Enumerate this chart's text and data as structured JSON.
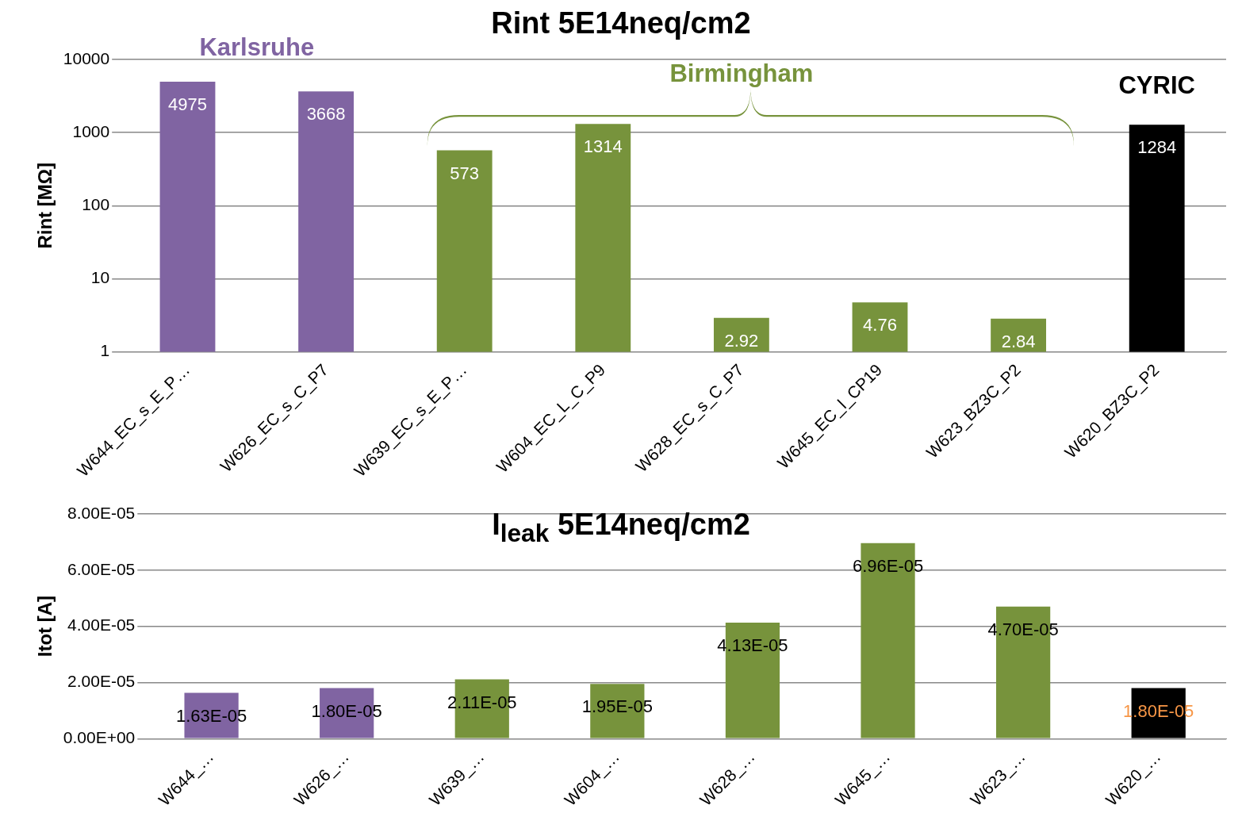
{
  "chart_data": [
    {
      "type": "bar",
      "title": "Rint 5E14neq/cm2",
      "ylabel": "Rint [MΩ]",
      "categories": [
        "W644_EC_s_E_P…",
        "W626_EC_s_C_P7",
        "W639_EC_s_E_P…",
        "W604_EC_L_C_P9",
        "W628_EC_s_C_P7",
        "W645_EC_l_CP19",
        "W623_BZ3C_P2",
        "W620_BZ3C_P2"
      ],
      "values": [
        4975,
        3668,
        573,
        1314,
        2.92,
        4.76,
        2.84,
        1284
      ],
      "colors": [
        "#8064a2",
        "#8064a2",
        "#77933c",
        "#77933c",
        "#77933c",
        "#77933c",
        "#77933c",
        "#000000"
      ],
      "log": true,
      "ylim": [
        1,
        10000
      ],
      "yticks": [
        1,
        10,
        100,
        1000,
        10000
      ],
      "grid": "y",
      "legend": false,
      "data_labels": true,
      "annotations": [
        "Karlsruhe",
        "Birmingham",
        "CYRIC"
      ]
    },
    {
      "type": "bar",
      "title": "I$_{leak}$ 5E14neq/cm2",
      "ylabel": "Itot [A]",
      "categories": [
        "W644_…",
        "W626_…",
        "W639_…",
        "W604_…",
        "W628_…",
        "W645_…",
        "W623_…",
        "W620_…"
      ],
      "values": [
        1.63e-05,
        1.8e-05,
        2.11e-05,
        1.95e-05,
        4.13e-05,
        6.96e-05,
        4.7e-05,
        1.8e-05
      ],
      "colors": [
        "#8064a2",
        "#8064a2",
        "#77933c",
        "#77933c",
        "#77933c",
        "#77933c",
        "#77933c",
        "#000000"
      ],
      "value_labels": [
        "1.63E-05",
        "1.80E-05",
        "2.11E-05",
        "1.95E-05",
        "4.13E-05",
        "6.96E-05",
        "4.70E-05",
        "1.80E-05"
      ],
      "ylim": [
        0,
        8e-05
      ],
      "yticks": [
        {
          "value": 0,
          "label": "0.00E+00"
        },
        {
          "value": 2e-05,
          "label": "2.00E-05"
        },
        {
          "value": 4e-05,
          "label": "4.00E-05"
        },
        {
          "value": 6e-05,
          "label": "6.00E-05"
        },
        {
          "value": 8e-05,
          "label": "8.00E-05"
        }
      ],
      "grid": "y",
      "legend": false
    }
  ]
}
